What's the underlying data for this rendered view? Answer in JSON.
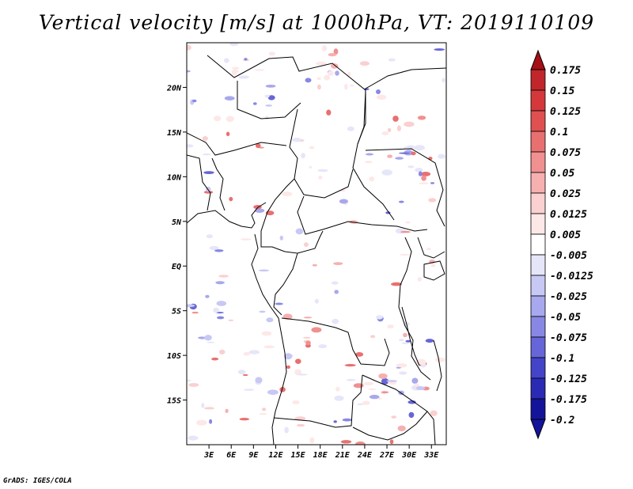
{
  "title": "Vertical velocity [m/s] at 1000hPa, VT: 2019110109",
  "footer": "GrADS: IGES/COLA",
  "map": {
    "lon_range": [
      0,
      35
    ],
    "lat_range": [
      -20,
      25
    ],
    "lat_ticks": [
      {
        "value": 20,
        "label": "20N"
      },
      {
        "value": 15,
        "label": "15N"
      },
      {
        "value": 10,
        "label": "10N"
      },
      {
        "value": 5,
        "label": "5N"
      },
      {
        "value": 0,
        "label": "EQ"
      },
      {
        "value": -5,
        "label": "5S"
      },
      {
        "value": -10,
        "label": "10S"
      },
      {
        "value": -15,
        "label": "15S"
      }
    ],
    "lon_ticks": [
      {
        "value": 3,
        "label": "3E"
      },
      {
        "value": 6,
        "label": "6E"
      },
      {
        "value": 9,
        "label": "9E"
      },
      {
        "value": 12,
        "label": "12E"
      },
      {
        "value": 15,
        "label": "15E"
      },
      {
        "value": 18,
        "label": "18E"
      },
      {
        "value": 21,
        "label": "21E"
      },
      {
        "value": 24,
        "label": "24E"
      },
      {
        "value": 27,
        "label": "27E"
      },
      {
        "value": 30,
        "label": "30E"
      },
      {
        "value": 33,
        "label": "33E"
      }
    ]
  },
  "colorbar": {
    "levels": [
      {
        "label": "0.175",
        "color": "#a50f15"
      },
      {
        "label": "0.15",
        "color": "#c0262a"
      },
      {
        "label": "0.125",
        "color": "#d4383a"
      },
      {
        "label": "0.1",
        "color": "#e05050"
      },
      {
        "label": "0.075",
        "color": "#e87070"
      },
      {
        "label": "0.05",
        "color": "#f09090"
      },
      {
        "label": "0.025",
        "color": "#f6b0b0"
      },
      {
        "label": "0.0125",
        "color": "#fad0d0"
      },
      {
        "label": "0.005",
        "color": "#fde8e8"
      },
      {
        "label": "-0.005",
        "color": "#ffffff"
      },
      {
        "label": "-0.0125",
        "color": "#e6e6fa"
      },
      {
        "label": "-0.025",
        "color": "#c8c8f5"
      },
      {
        "label": "-0.05",
        "color": "#a8a8ee"
      },
      {
        "label": "-0.075",
        "color": "#8888e4"
      },
      {
        "label": "-0.1",
        "color": "#6666d8"
      },
      {
        "label": "-0.125",
        "color": "#4444c8"
      },
      {
        "label": "-0.175",
        "color": "#2a2ab4"
      },
      {
        "label": "-0.2",
        "color": "#14149a"
      }
    ],
    "top_cap_color": "#a50f15",
    "bottom_cap_color": "#14149a"
  }
}
